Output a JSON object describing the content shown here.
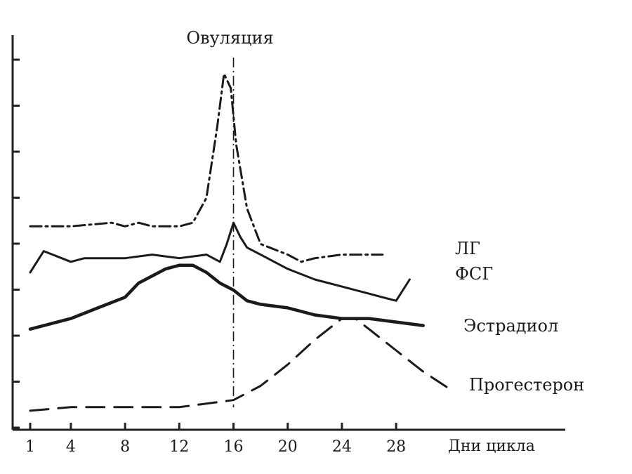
{
  "chart_data": {
    "type": "line",
    "title": "",
    "xlabel": "Дни цикла",
    "ylabel": "",
    "x_ticks": [
      1,
      4,
      8,
      12,
      16,
      20,
      24,
      28
    ],
    "xlim": [
      0,
      32
    ],
    "ylim": [
      0,
      100
    ],
    "y_tick_count": 9,
    "y_tick_labels": false,
    "grid": false,
    "annotation": {
      "text": "Овуляция",
      "x": 16
    },
    "series": [
      {
        "name": "ЛГ",
        "style": "dash-dot",
        "x": [
          1,
          4,
          7,
          8,
          9,
          10,
          11,
          12,
          13,
          14,
          14.8,
          15.3,
          15.8,
          16.2,
          17,
          18,
          20,
          21,
          22,
          24,
          26,
          27
        ],
        "y": [
          55,
          55,
          56,
          55,
          56,
          55,
          55,
          55,
          56,
          63,
          83,
          98,
          94,
          78,
          60,
          50,
          47,
          45,
          46,
          47,
          47,
          47
        ]
      },
      {
        "name": "ФСГ",
        "style": "solid-thin",
        "x": [
          1,
          2,
          4,
          5,
          6,
          8,
          10,
          12,
          14,
          15,
          15.5,
          16,
          16.5,
          17,
          18,
          20,
          22,
          24,
          26,
          27,
          28,
          29
        ],
        "y": [
          42,
          48,
          45,
          46,
          46,
          46,
          47,
          46,
          47,
          45,
          50,
          56,
          52,
          49,
          47,
          43,
          40,
          38,
          36,
          35,
          34,
          40
        ]
      },
      {
        "name": "Эстрадиол",
        "style": "solid-thick",
        "x": [
          1,
          4,
          6,
          8,
          9,
          10,
          11,
          12,
          13,
          14,
          15,
          16,
          17,
          18,
          20,
          22,
          24,
          26,
          28,
          30
        ],
        "y": [
          26,
          29,
          32,
          35,
          39,
          41,
          43,
          44,
          44,
          42,
          39,
          37,
          34,
          33,
          32,
          30,
          29,
          29,
          28,
          27
        ]
      },
      {
        "name": "Прогестерон",
        "style": "dashed",
        "x": [
          1,
          4,
          8,
          12,
          14,
          16,
          18,
          20,
          22,
          24,
          25,
          26,
          28,
          30,
          32
        ],
        "y": [
          3,
          4,
          4,
          4,
          5,
          6,
          10,
          16,
          23,
          29,
          29,
          26,
          20,
          14,
          9
        ]
      }
    ],
    "label_texts": [
      "ЛГ",
      "ФСГ",
      "Эстрадиол",
      "Прогестерон"
    ]
  }
}
